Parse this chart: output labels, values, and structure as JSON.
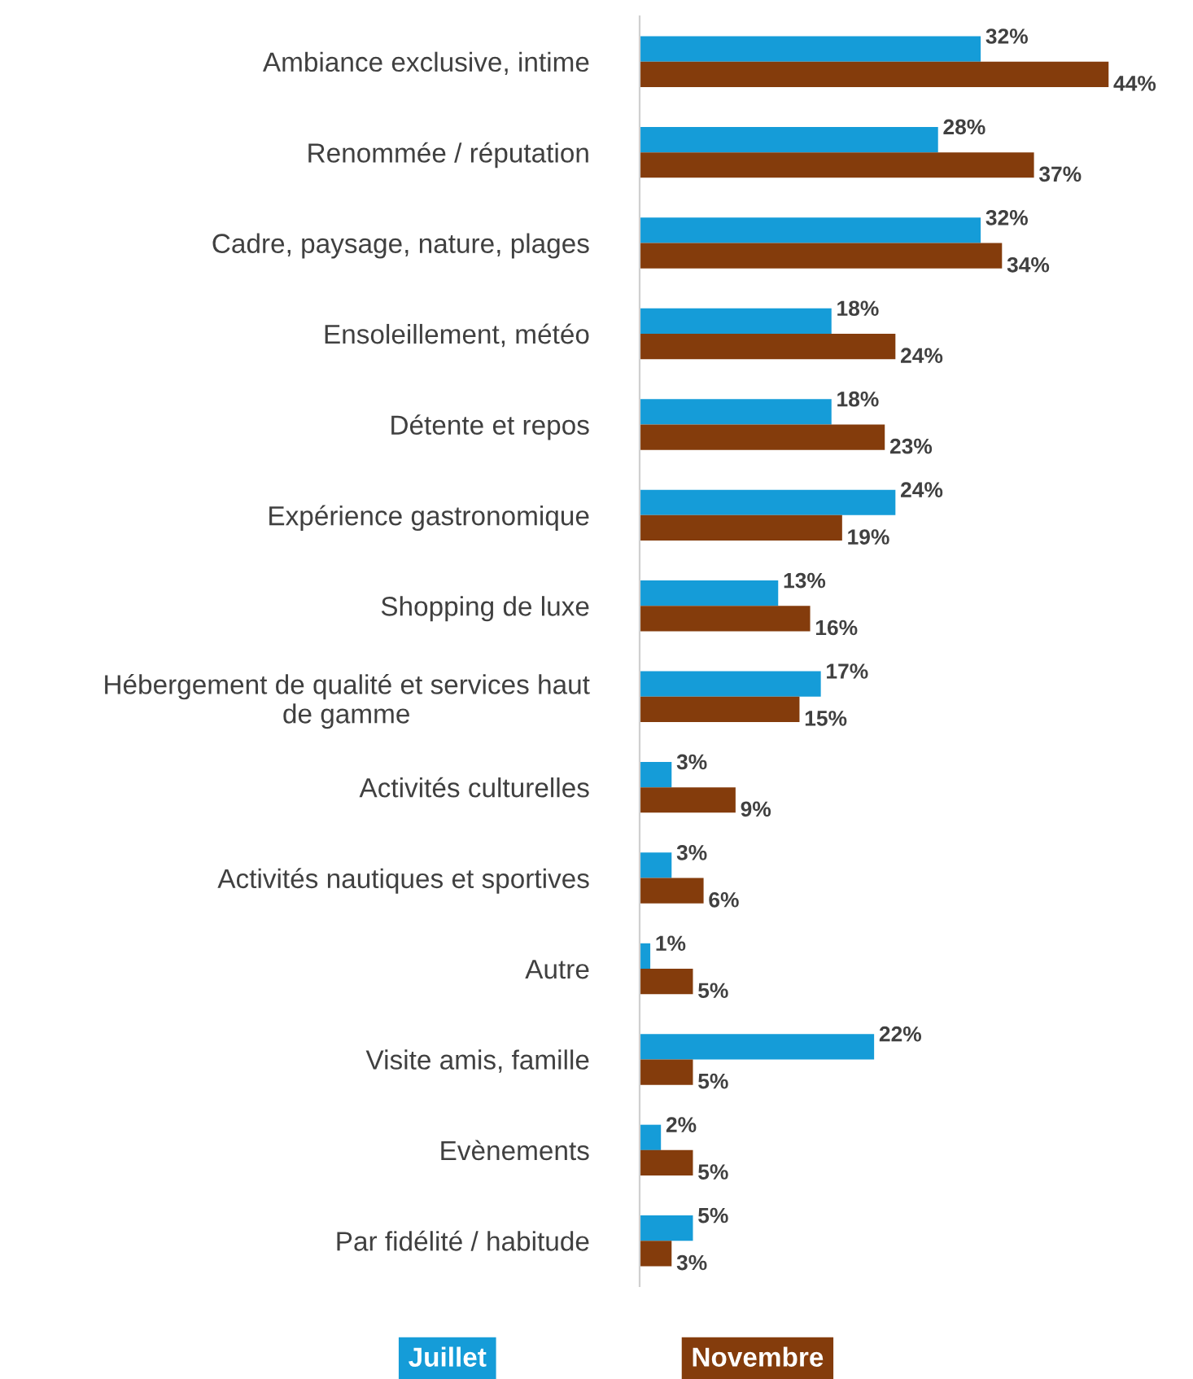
{
  "chart_data": {
    "type": "bar",
    "orientation": "horizontal",
    "legend": "bottom",
    "grid": false,
    "categories": [
      "Ambiance exclusive, intime",
      "Renommée / réputation",
      "Cadre, paysage, nature, plages",
      "Ensoleillement, météo",
      "Détente et repos",
      "Expérience gastronomique",
      "Shopping de luxe",
      "Hébergement de qualité et services haut\nde gamme",
      "Activités culturelles",
      "Activités nautiques et sportives",
      "Autre",
      "Visite amis, famille",
      "Evènements",
      "Par fidélité / habitude"
    ],
    "series": [
      {
        "name": "Juillet",
        "color": "#159cd8",
        "values": [
          32,
          28,
          32,
          18,
          18,
          24,
          13,
          17,
          3,
          3,
          1,
          22,
          2,
          5
        ],
        "value_labels": [
          "32%",
          "28%",
          "32%",
          "18%",
          "18%",
          "24%",
          "13%",
          "17%",
          "3%",
          "3%",
          "1%",
          "22%",
          "2%",
          "5%"
        ]
      },
      {
        "name": "Novembre",
        "color": "#843c0c",
        "values": [
          44,
          37,
          34,
          24,
          23,
          19,
          16,
          15,
          9,
          6,
          5,
          5,
          5,
          3
        ],
        "value_labels": [
          "44%",
          "37%",
          "34%",
          "24%",
          "23%",
          "19%",
          "16%",
          "15%",
          "9%",
          "6%",
          "5%",
          "5%",
          "5%",
          "3%"
        ]
      }
    ]
  }
}
